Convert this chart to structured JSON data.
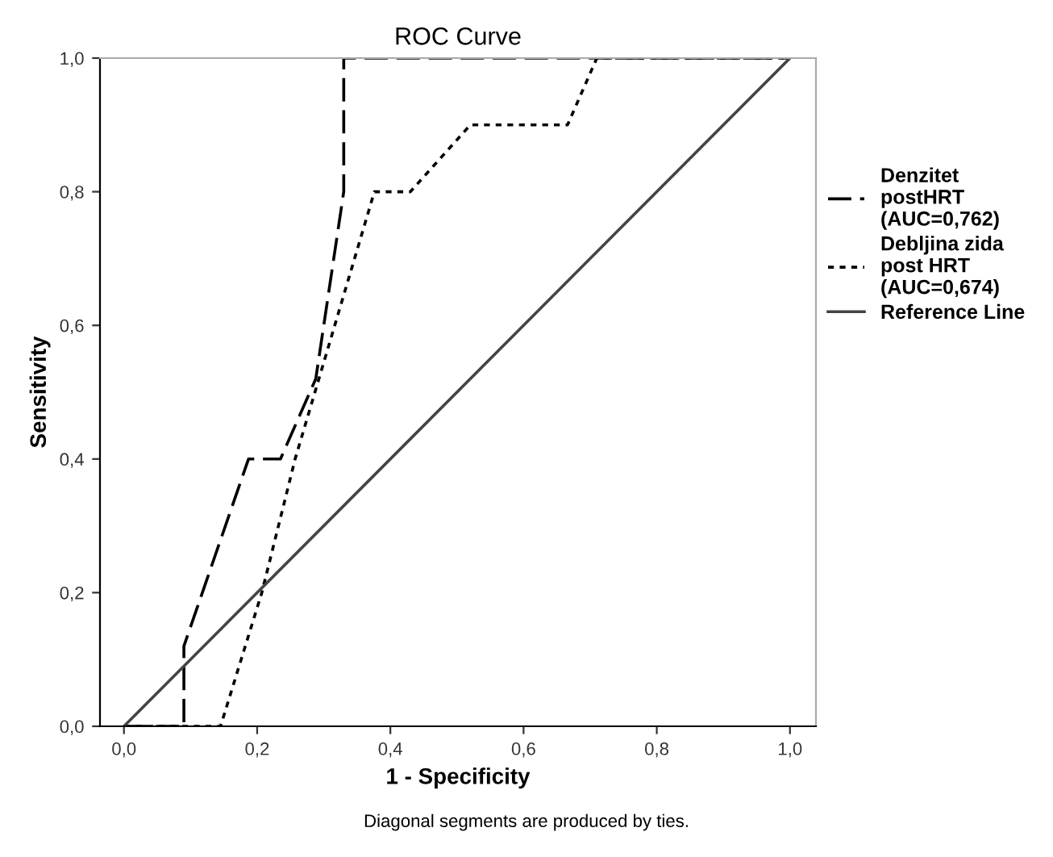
{
  "chart_data": {
    "type": "line",
    "title": "ROC Curve",
    "xlabel": "1 - Specificity",
    "ylabel": "Sensitivity",
    "series": [
      {
        "name": "Denzitet\npostHRT\n(AUC=0,762)",
        "color": "#000000",
        "line_style": "dashed",
        "x": [
          0,
          0.09,
          0.09,
          0.187,
          0.235,
          0.288,
          0.33,
          0.33,
          1.0
        ],
        "values": [
          0,
          0,
          0.12,
          0.4,
          0.4,
          0.52,
          0.8,
          1.0,
          1.0
        ]
      },
      {
        "name": "Debljina zida\npost HRT\n(AUC=0,674)",
        "color": "#000000",
        "line_style": "dotted",
        "x": [
          0,
          0.145,
          0.207,
          0.257,
          0.376,
          0.43,
          0.52,
          0.666,
          0.71,
          1.0
        ],
        "values": [
          0,
          0,
          0.2,
          0.4,
          0.8,
          0.8,
          0.9,
          0.9,
          1.0,
          1.0
        ]
      },
      {
        "name": "Reference Line",
        "color": "#444444",
        "line_style": "solid",
        "x": [
          0,
          1
        ],
        "values": [
          0,
          1
        ]
      }
    ],
    "xlim": [
      -0.036,
      1.039
    ],
    "ylim": [
      0,
      1
    ],
    "xticks": [
      {
        "value": 0,
        "label": "0,0"
      },
      {
        "value": 0.2,
        "label": "0,2"
      },
      {
        "value": 0.4,
        "label": "0,4"
      },
      {
        "value": 0.6,
        "label": "0,6"
      },
      {
        "value": 0.8,
        "label": "0,8"
      },
      {
        "value": 1.0,
        "label": "1,0"
      }
    ],
    "yticks": [
      {
        "value": 0,
        "label": "0,0"
      },
      {
        "value": 0.2,
        "label": "0,2"
      },
      {
        "value": 0.4,
        "label": "0,4"
      },
      {
        "value": 0.6,
        "label": "0,6"
      },
      {
        "value": 0.8,
        "label": "0,8"
      },
      {
        "value": 1.0,
        "label": "1,0"
      }
    ],
    "grid": false,
    "legend": "right",
    "marker": "none",
    "annotations": [
      "Diagonal segments are produced by ties."
    ]
  }
}
